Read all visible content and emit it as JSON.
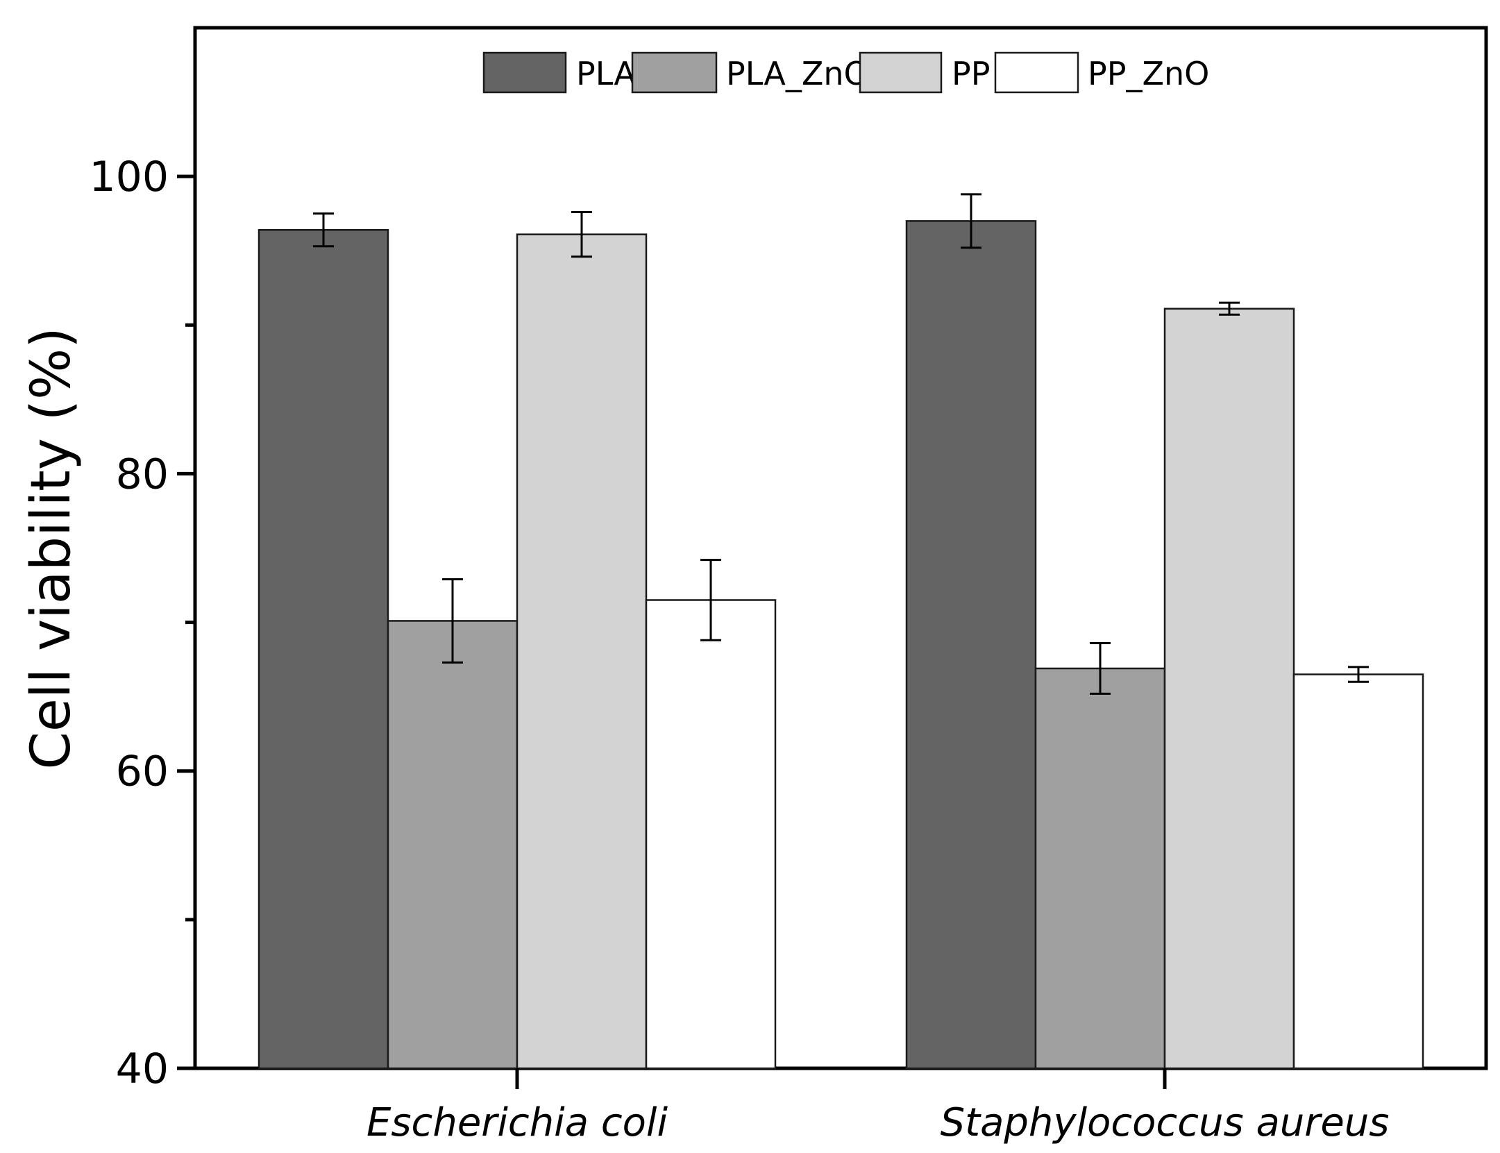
{
  "chart_data": {
    "type": "bar",
    "title": "",
    "xlabel": "",
    "ylabel": "Cell viability (%)",
    "ylim": [
      40,
      110
    ],
    "yticks": [
      40,
      60,
      80,
      100
    ],
    "y_minor_ticks": [
      50,
      70,
      90
    ],
    "grid": false,
    "legend_position": "top-center",
    "categories": [
      "Escherichia coli",
      "Staphylococcus aureus"
    ],
    "series": [
      {
        "name": "PLA",
        "color": "#646464",
        "values": [
          96.4,
          97.0
        ],
        "errors": [
          1.1,
          1.8
        ]
      },
      {
        "name": "PLA_ZnO",
        "color": "#a0a0a0",
        "values": [
          70.1,
          66.9
        ],
        "errors": [
          2.8,
          1.7
        ]
      },
      {
        "name": "PP",
        "color": "#d3d3d3",
        "values": [
          96.1,
          91.1
        ],
        "errors": [
          1.5,
          0.4
        ]
      },
      {
        "name": "PP_ZnO",
        "color": "#ffffff",
        "values": [
          71.5,
          66.5
        ],
        "errors": [
          2.7,
          0.5
        ]
      }
    ]
  }
}
